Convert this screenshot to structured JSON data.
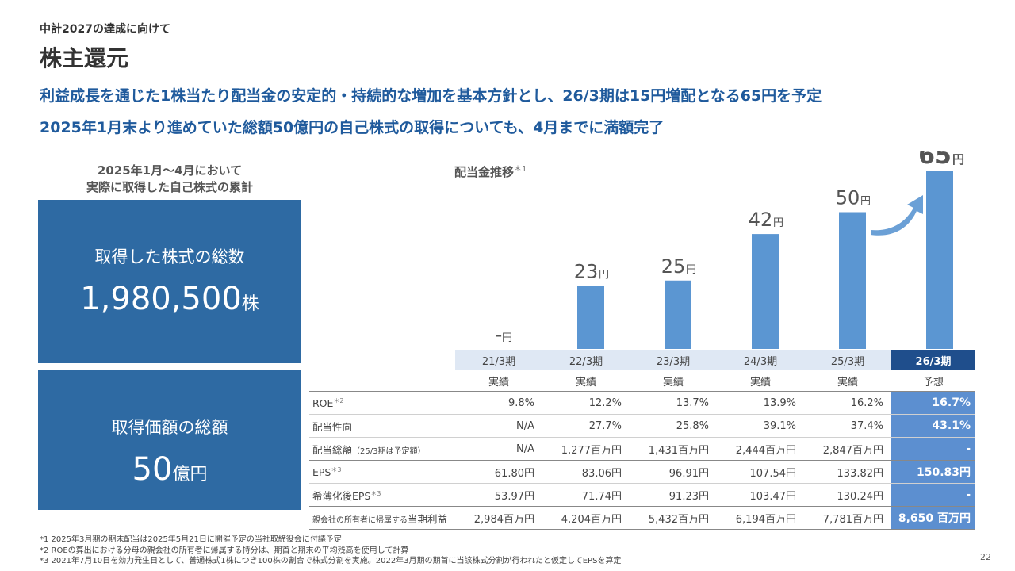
{
  "header": {
    "eyebrow": "中計2027の達成に向けて",
    "title": "株主還元",
    "headline_1": "利益成長を通じた1株当たり配当金の安定的・持続的な増加を基本方針とし、26/3期は15円増配となる65円を予定",
    "headline_2": "2025年1月末より進めていた総額50億円の自己株式の取得についても、4月までに満額完了"
  },
  "buyback": {
    "heading_line1": "2025年1月～4月において",
    "heading_line2": "実際に取得した自己株式の累計",
    "shares_label": "取得した株式の総数",
    "shares_value": "1,980,500",
    "shares_unit": "株",
    "amount_label": "取得価額の総額",
    "amount_value": "50",
    "amount_unit": "億円"
  },
  "chart_title": "配当金推移",
  "chart_title_note": "＊1",
  "chart_data": {
    "type": "bar",
    "title": "配当金推移",
    "categories": [
      "21/3期",
      "22/3期",
      "23/3期",
      "24/3期",
      "25/3期",
      "26/3期"
    ],
    "values": [
      null,
      23,
      25,
      42,
      50,
      65
    ],
    "value_labels": [
      "-",
      "23",
      "25",
      "42",
      "50",
      "65"
    ],
    "unit": "円",
    "ylim": [
      0,
      70
    ],
    "bar_color": "#5b96d2",
    "highlight_index": 5
  },
  "table": {
    "periods": [
      "21/3期",
      "22/3期",
      "23/3期",
      "24/3期",
      "25/3期",
      "26/3期"
    ],
    "statuses": [
      "実績",
      "実績",
      "実績",
      "実績",
      "実績",
      "予想"
    ],
    "rows": [
      {
        "label": "ROE",
        "note": "＊2",
        "values": [
          "9.8%",
          "12.2%",
          "13.7%",
          "13.9%",
          "16.2%",
          "16.7%"
        ]
      },
      {
        "label": "配当性向",
        "note": "",
        "values": [
          "N/A",
          "27.7%",
          "25.8%",
          "39.1%",
          "37.4%",
          "43.1%"
        ]
      },
      {
        "label": "配当総額",
        "note": "（25/3期は予定額）",
        "values": [
          "N/A",
          "1,277百万円",
          "1,431百万円",
          "2,444百万円",
          "2,847百万円",
          "-"
        ]
      },
      {
        "label": "EPS",
        "note": "＊3",
        "values": [
          "61.80円",
          "83.06円",
          "96.91円",
          "107.54円",
          "133.82円",
          "150.83円"
        ]
      },
      {
        "label": "希薄化後EPS",
        "note": "＊3",
        "values": [
          "53.97円",
          "71.74円",
          "91.23円",
          "103.47円",
          "130.24円",
          "-"
        ]
      },
      {
        "label": "当期利益",
        "prefix": "親会社の所有者に帰属する",
        "note": "",
        "values": [
          "2,984百万円",
          "4,204百万円",
          "5,432百万円",
          "6,194百万円",
          "7,781百万円",
          "8,650 百万円"
        ]
      }
    ]
  },
  "footnotes": [
    "*1  2025年3月期の期末配当は2025年5月21日に開催予定の当社取締役会に付議予定",
    "*2  ROEの算出における分母の親会社の所有者に帰属する持分は、期首と期末の平均残高を使用して計算",
    "*3  2021年7月10日を効力発生日として、普通株式1株につき100株の割合で株式分割を実施。2022年3月期の期首に当該株式分割が行われたと仮定してEPSを算定"
  ],
  "page_number": "22",
  "colors": {
    "brand": "#1f5a9c",
    "box": "#2e6aa3",
    "bar": "#5b96d2",
    "forecast_header": "#1f4e8c",
    "forecast_cell": "#5c8fd0"
  }
}
